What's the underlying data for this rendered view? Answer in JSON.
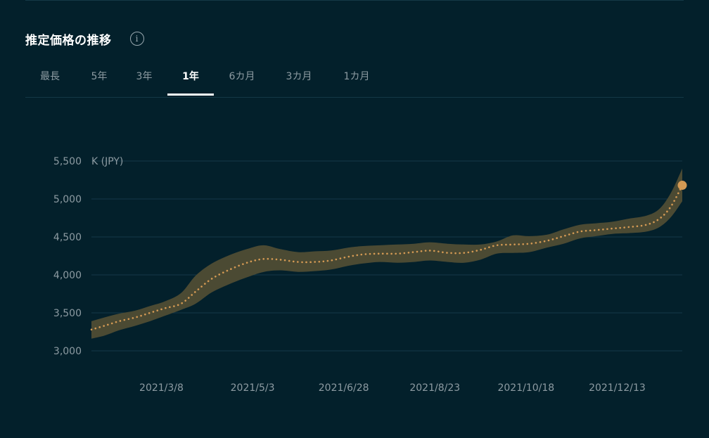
{
  "header": {
    "title": "推定価格の推移",
    "info_icon": "info-icon"
  },
  "tabs": [
    {
      "label": "最長",
      "active": false
    },
    {
      "label": "5年",
      "active": false
    },
    {
      "label": "3年",
      "active": false
    },
    {
      "label": "1年",
      "active": true
    },
    {
      "label": "6カ月",
      "active": false
    },
    {
      "label": "3カ月",
      "active": false
    },
    {
      "label": "1カ月",
      "active": false
    }
  ],
  "colors": {
    "background": "#03202b",
    "line": "#d49a54",
    "band": "#4b4a33",
    "grid": "#14394a",
    "marker": "#d49a54"
  },
  "chart_data": {
    "type": "line",
    "title": "",
    "unit_label": "K (JPY)",
    "xlabel": "",
    "ylabel": "",
    "ylim": [
      3000,
      5500
    ],
    "yticks": [
      3000,
      3500,
      4000,
      4500,
      5000,
      5500
    ],
    "ytick_labels": [
      "3,000",
      "3,500",
      "4,000",
      "4,500",
      "5,000",
      "5,500"
    ],
    "xlim": [
      "2021-01-24",
      "2022-01-22"
    ],
    "xticks": [
      "2021-03-08",
      "2021-05-03",
      "2021-06-28",
      "2021-08-23",
      "2021-10-18",
      "2021-12-13"
    ],
    "xtick_labels": [
      "2021/3/8",
      "2021/5/3",
      "2021/6/28",
      "2021/8/23",
      "2021/10/18",
      "2021/12/13"
    ],
    "grid": true,
    "series": [
      {
        "x": [
          "2021-01-24",
          "2021-02-01",
          "2021-02-10",
          "2021-02-20",
          "2021-03-01",
          "2021-03-10",
          "2021-03-20",
          "2021-03-29",
          "2021-04-08",
          "2021-04-20",
          "2021-05-01",
          "2021-05-10",
          "2021-05-20",
          "2021-05-31",
          "2021-06-10",
          "2021-06-20",
          "2021-07-01",
          "2021-07-10",
          "2021-07-20",
          "2021-07-31",
          "2021-08-10",
          "2021-08-20",
          "2021-08-31",
          "2021-09-10",
          "2021-09-20",
          "2021-09-30",
          "2021-10-10",
          "2021-10-20",
          "2021-10-31",
          "2021-11-10",
          "2021-11-20",
          "2021-11-30",
          "2021-12-10",
          "2021-12-20",
          "2021-12-31",
          "2022-01-08",
          "2022-01-15",
          "2022-01-22"
        ],
        "values": [
          3280,
          3330,
          3390,
          3440,
          3500,
          3560,
          3620,
          3780,
          3950,
          4080,
          4170,
          4210,
          4200,
          4170,
          4170,
          4190,
          4240,
          4270,
          4280,
          4280,
          4300,
          4320,
          4290,
          4290,
          4330,
          4390,
          4400,
          4410,
          4450,
          4510,
          4570,
          4590,
          4610,
          4630,
          4660,
          4740,
          4900,
          5180
        ],
        "upper": [
          3390,
          3440,
          3490,
          3530,
          3590,
          3650,
          3760,
          3990,
          4150,
          4270,
          4350,
          4390,
          4340,
          4300,
          4310,
          4320,
          4360,
          4380,
          4390,
          4400,
          4410,
          4430,
          4410,
          4400,
          4400,
          4440,
          4520,
          4510,
          4530,
          4600,
          4660,
          4680,
          4700,
          4740,
          4780,
          4870,
          5080,
          5400
        ],
        "lower": [
          3160,
          3200,
          3270,
          3330,
          3390,
          3460,
          3540,
          3620,
          3770,
          3890,
          3980,
          4040,
          4060,
          4040,
          4050,
          4070,
          4120,
          4150,
          4170,
          4160,
          4170,
          4190,
          4170,
          4160,
          4200,
          4280,
          4290,
          4300,
          4360,
          4410,
          4480,
          4510,
          4540,
          4550,
          4570,
          4630,
          4760,
          4970
        ]
      }
    ]
  }
}
